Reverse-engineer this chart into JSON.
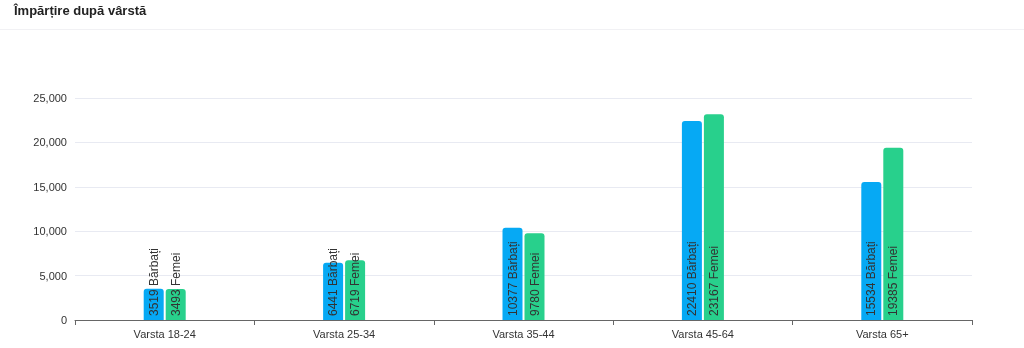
{
  "chart_data": {
    "type": "bar",
    "title": "Împărțire după vârstă",
    "categories": [
      "Varsta 18-24",
      "Varsta 25-34",
      "Varsta 35-44",
      "Varsta 45-64",
      "Varsta 65+"
    ],
    "series": [
      {
        "name": "Bărbați",
        "color": "#06a9f4",
        "values": [
          3519,
          6441,
          10377,
          22410,
          15534
        ]
      },
      {
        "name": "Femei",
        "color": "#28d08c",
        "values": [
          3493,
          6719,
          9780,
          23167,
          19385
        ]
      }
    ],
    "ylim": [
      0,
      25000
    ],
    "yticks": [
      {
        "value": 0,
        "label": "0"
      },
      {
        "value": 5000,
        "label": "5,000"
      },
      {
        "value": 10000,
        "label": "10,000"
      },
      {
        "value": 15000,
        "label": "15,000"
      },
      {
        "value": 20000,
        "label": "20,000"
      },
      {
        "value": 25000,
        "label": "25,000"
      }
    ],
    "data_labels": true,
    "grid": "y",
    "legend": false
  }
}
